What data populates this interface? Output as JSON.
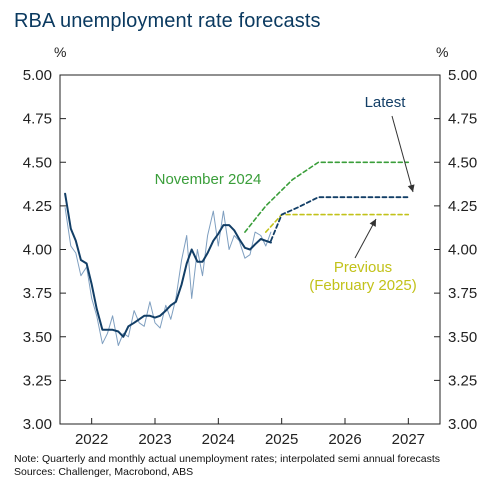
{
  "title": "RBA unemployment rate forecasts",
  "unit_left": "%",
  "unit_right": "%",
  "note": "Note: Quarterly and monthly actual unemployment rates; interpolated semi annual forecasts",
  "sources": "Sources: Challenger, Macrobond, ABS",
  "colors": {
    "title": "#0b3a60",
    "latest": "#123e66",
    "monthly": "#7f9fc0",
    "november": "#3a9e3a",
    "previous": "#c2c21a",
    "axis": "#222222"
  },
  "chart_data": {
    "type": "line",
    "title": "RBA unemployment rate forecasts",
    "y_axis": {
      "min": 3.0,
      "max": 5.0,
      "ticks": [
        "3.00",
        "3.25",
        "3.50",
        "3.75",
        "4.00",
        "4.25",
        "4.50",
        "4.75",
        "5.00"
      ]
    },
    "x_axis": {
      "min": 2021.5,
      "max": 2027.5,
      "ticks": [
        "2022",
        "2023",
        "2024",
        "2025",
        "2026",
        "2027"
      ]
    },
    "grid": false,
    "series": [
      {
        "name": "Latest",
        "style": "solid",
        "x": [
          2021.58,
          2021.67,
          2021.75,
          2021.83,
          2021.92,
          2022.0,
          2022.08,
          2022.17,
          2022.25,
          2022.33,
          2022.42,
          2022.5,
          2022.58,
          2022.67,
          2022.75,
          2022.83,
          2022.92,
          2023.0,
          2023.08,
          2023.17,
          2023.25,
          2023.33,
          2023.42,
          2023.5,
          2023.58,
          2023.67,
          2023.75,
          2023.83,
          2023.92,
          2024.0,
          2024.08,
          2024.17,
          2024.25,
          2024.33,
          2024.42,
          2024.5,
          2024.58,
          2024.67,
          2024.75,
          2024.83
        ],
        "y": [
          4.32,
          4.12,
          4.05,
          3.94,
          3.92,
          3.8,
          3.66,
          3.54,
          3.54,
          3.54,
          3.53,
          3.5,
          3.56,
          3.58,
          3.6,
          3.62,
          3.62,
          3.61,
          3.62,
          3.65,
          3.68,
          3.7,
          3.8,
          3.92,
          4.0,
          3.93,
          3.93,
          3.98,
          4.05,
          4.09,
          4.14,
          4.14,
          4.11,
          4.06,
          4.01,
          4.0,
          4.03,
          4.06,
          4.05,
          4.04
        ]
      },
      {
        "name": "Monthly",
        "style": "thin",
        "x": [
          2021.58,
          2021.67,
          2021.75,
          2021.83,
          2021.92,
          2022.0,
          2022.08,
          2022.17,
          2022.25,
          2022.33,
          2022.42,
          2022.5,
          2022.58,
          2022.67,
          2022.75,
          2022.83,
          2022.92,
          2023.0,
          2023.08,
          2023.17,
          2023.25,
          2023.33,
          2023.42,
          2023.5,
          2023.58,
          2023.67,
          2023.75,
          2023.83,
          2023.92,
          2024.0,
          2024.08,
          2024.17,
          2024.25,
          2024.33,
          2024.42,
          2024.5,
          2024.58,
          2024.67,
          2024.75,
          2024.83
        ],
        "y": [
          4.24,
          4.02,
          3.98,
          3.85,
          3.9,
          3.72,
          3.62,
          3.46,
          3.52,
          3.62,
          3.45,
          3.52,
          3.5,
          3.65,
          3.58,
          3.56,
          3.7,
          3.58,
          3.55,
          3.68,
          3.6,
          3.72,
          3.94,
          4.08,
          3.72,
          4.0,
          3.85,
          4.08,
          4.22,
          4.02,
          4.22,
          4.0,
          4.08,
          4.05,
          3.95,
          3.97,
          4.1,
          4.08,
          4.02,
          4.1
        ]
      },
      {
        "name": "November 2024",
        "style": "dashed",
        "x": [
          2024.42,
          2024.75,
          2025.17,
          2025.58,
          2026.0,
          2026.5,
          2027.0
        ],
        "y": [
          4.1,
          4.25,
          4.4,
          4.5,
          4.5,
          4.5,
          4.5
        ]
      },
      {
        "name": "Previous (February 2025)",
        "style": "dashed",
        "x": [
          2024.75,
          2025.0,
          2025.33,
          2026.0,
          2026.5,
          2027.0
        ],
        "y": [
          4.1,
          4.2,
          4.2,
          4.2,
          4.2,
          4.2
        ]
      },
      {
        "name": "Latest forecast",
        "style": "dashed",
        "x": [
          2024.83,
          2025.0,
          2025.25,
          2025.58,
          2026.0,
          2026.5,
          2027.0
        ],
        "y": [
          4.05,
          4.2,
          4.24,
          4.3,
          4.3,
          4.3,
          4.3
        ]
      }
    ],
    "annotations": [
      {
        "text": "Latest",
        "series": "Latest forecast"
      },
      {
        "text": "November 2024",
        "series": "November 2024"
      },
      {
        "text": "Previous",
        "series": "Previous (February 2025)"
      },
      {
        "text": "(February 2025)",
        "series": "Previous (February 2025)"
      }
    ]
  }
}
